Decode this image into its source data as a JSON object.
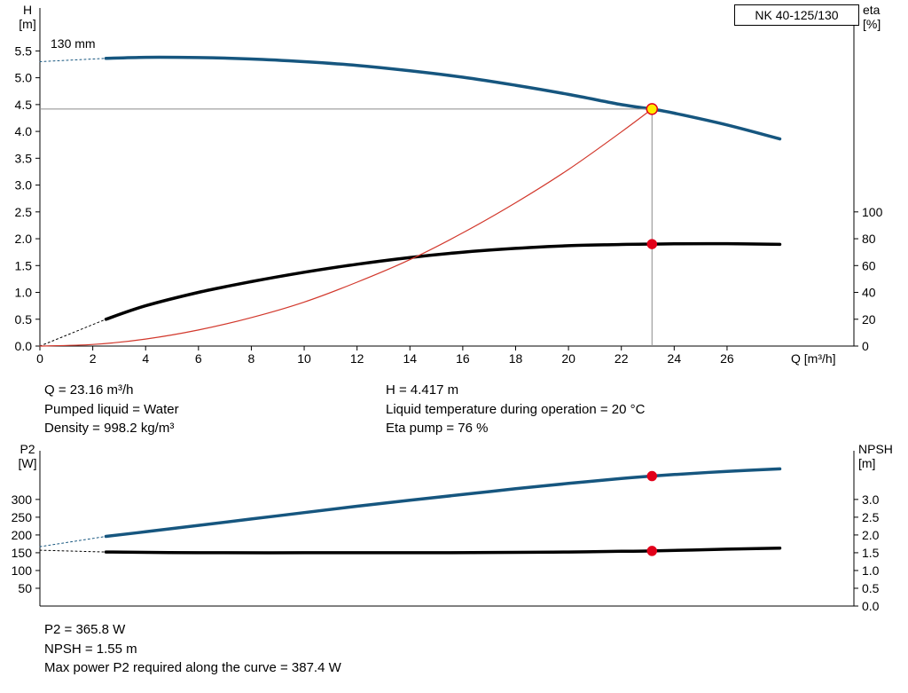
{
  "title_box": "NK 40-125/130",
  "info_top": {
    "col1": [
      "Q = 23.16 m³/h",
      "Pumped liquid = Water",
      "Density = 998.2 kg/m³"
    ],
    "col2": [
      "H = 4.417 m",
      "Liquid temperature during operation = 20 °C",
      "Eta pump = 76 %"
    ]
  },
  "info_bottom": [
    "P2 = 365.8 W",
    "NPSH = 1.55 m",
    "Max power P2 required along the curve = 387.4 W"
  ],
  "colors": {
    "blue": "#16567f",
    "black": "#000000",
    "red": "#d2382c",
    "gray": "#8a8a8a",
    "dot_red": "#e2001a",
    "dot_yellow": "#ffec00",
    "axis": "#000000"
  },
  "chart_data": [
    {
      "type": "line",
      "name": "qh-eta-chart",
      "title": "NK 40-125/130",
      "x_label": "Q [m³/h]",
      "y_left_label": [
        "H",
        "[m]"
      ],
      "y_right_label": [
        "eta",
        "[%]"
      ],
      "impeller_label": "130 mm",
      "grid": false,
      "x_range": [
        0,
        30.8
      ],
      "y_left_range": [
        0,
        6.3
      ],
      "y_right_range": [
        0,
        252
      ],
      "x_ticks": {
        "values": [
          0,
          2,
          4,
          6,
          8,
          10,
          12,
          14,
          16,
          18,
          20,
          22,
          24,
          26
        ],
        "labels": [
          "0",
          "2",
          "4",
          "6",
          "8",
          "10",
          "12",
          "14",
          "16",
          "18",
          "20",
          "22",
          "24",
          "26"
        ]
      },
      "y_left_ticks": {
        "values": [
          0,
          0.5,
          1,
          1.5,
          2,
          2.5,
          3,
          3.5,
          4,
          4.5,
          5,
          5.5
        ],
        "labels": [
          "0.0",
          "0.5",
          "1.0",
          "1.5",
          "2.0",
          "2.5",
          "3.0",
          "3.5",
          "4.0",
          "4.5",
          "5.0",
          "5.5"
        ]
      },
      "y_right_ticks": {
        "values": [
          0,
          20,
          40,
          60,
          80,
          100
        ],
        "labels": [
          "0",
          "20",
          "40",
          "60",
          "80",
          "100"
        ]
      },
      "series": [
        {
          "name": "head-curve-dotted",
          "axis": "left",
          "color": "blue",
          "width": 1,
          "dash": "2 3",
          "points": [
            [
              0,
              5.3
            ],
            [
              2.5,
              5.36
            ]
          ]
        },
        {
          "name": "head-curve",
          "axis": "left",
          "color": "blue",
          "width": 3.5,
          "dash": null,
          "points": [
            [
              2.5,
              5.36
            ],
            [
              4,
              5.38
            ],
            [
              6,
              5.375
            ],
            [
              8,
              5.35
            ],
            [
              10,
              5.3
            ],
            [
              12,
              5.23
            ],
            [
              14,
              5.13
            ],
            [
              16,
              5.01
            ],
            [
              18,
              4.86
            ],
            [
              20,
              4.69
            ],
            [
              22,
              4.5
            ],
            [
              23.16,
              4.417
            ],
            [
              24,
              4.34
            ],
            [
              26,
              4.12
            ],
            [
              28,
              3.86
            ]
          ]
        },
        {
          "name": "efficiency-curve-dotted",
          "axis": "right",
          "color": "black",
          "width": 1,
          "dash": "2 3",
          "points": [
            [
              0,
              0
            ],
            [
              2.5,
              20
            ]
          ]
        },
        {
          "name": "efficiency-curve",
          "axis": "right",
          "color": "black",
          "width": 3.5,
          "dash": null,
          "points": [
            [
              2.5,
              20
            ],
            [
              4,
              30
            ],
            [
              6,
              40
            ],
            [
              8,
              48
            ],
            [
              10,
              55
            ],
            [
              12,
              61
            ],
            [
              14,
              66
            ],
            [
              16,
              70
            ],
            [
              18,
              72.8
            ],
            [
              20,
              74.8
            ],
            [
              22,
              75.7
            ],
            [
              23.16,
              76
            ],
            [
              24,
              76.2
            ],
            [
              26,
              76.3
            ],
            [
              28,
              75.8
            ]
          ]
        },
        {
          "name": "system-curve",
          "axis": "left",
          "color": "red",
          "width": 1.2,
          "dash": null,
          "points": [
            [
              0,
              0
            ],
            [
              2,
              0.03
            ],
            [
              4,
              0.13
            ],
            [
              6,
              0.3
            ],
            [
              8,
              0.53
            ],
            [
              10,
              0.82
            ],
            [
              12,
              1.19
            ],
            [
              14,
              1.61
            ],
            [
              16,
              2.11
            ],
            [
              18,
              2.67
            ],
            [
              20,
              3.29
            ],
            [
              22,
              3.99
            ],
            [
              23.16,
              4.417
            ]
          ]
        }
      ],
      "ref_lines": [
        {
          "name": "duty-h-line",
          "type": "h",
          "y": 4.417,
          "x_from": 0,
          "x_to": 23.16
        },
        {
          "name": "duty-v-line",
          "type": "v",
          "x": 23.16,
          "y_from": 0,
          "y_to": 4.417
        }
      ],
      "markers": [
        {
          "name": "duty-point",
          "axis": "left",
          "x": 23.16,
          "y": 4.417,
          "r": 6,
          "fill": "dot_yellow",
          "stroke": "dot_red"
        },
        {
          "name": "efficiency-point",
          "axis": "right",
          "x": 23.16,
          "y": 76,
          "r": 5,
          "fill": "dot_red",
          "stroke": "dot_red"
        }
      ]
    },
    {
      "type": "line",
      "name": "p2-npsh-chart",
      "x_label": "",
      "y_left_label": [
        "P2",
        "[W]"
      ],
      "y_right_label": [
        "NPSH",
        "[m]"
      ],
      "grid": false,
      "x_range": [
        0,
        30.8
      ],
      "y_left_range": [
        0,
        437
      ],
      "y_right_range": [
        0,
        4.37
      ],
      "x_ticks": null,
      "y_left_ticks": {
        "values": [
          50,
          100,
          150,
          200,
          250,
          300
        ],
        "labels": [
          "50",
          "100",
          "150",
          "200",
          "250",
          "300"
        ]
      },
      "y_right_ticks": {
        "values": [
          0,
          0.5,
          1,
          1.5,
          2,
          2.5,
          3
        ],
        "labels": [
          "0.0",
          "0.5",
          "1.0",
          "1.5",
          "2.0",
          "2.5",
          "3.0"
        ]
      },
      "series": [
        {
          "name": "p2-curve-dotted",
          "axis": "left",
          "color": "blue",
          "width": 1,
          "dash": "2 3",
          "points": [
            [
              0,
              167
            ],
            [
              2.5,
              196
            ]
          ]
        },
        {
          "name": "p2-curve",
          "axis": "left",
          "color": "blue",
          "width": 3.5,
          "dash": null,
          "points": [
            [
              2.5,
              196
            ],
            [
              4,
              209
            ],
            [
              6,
              227
            ],
            [
              8,
              245
            ],
            [
              10,
              263
            ],
            [
              12,
              281
            ],
            [
              14,
              298
            ],
            [
              16,
              314
            ],
            [
              18,
              330
            ],
            [
              20,
              345
            ],
            [
              22,
              359
            ],
            [
              23.16,
              365.8
            ],
            [
              24,
              370
            ],
            [
              26,
              379
            ],
            [
              28,
              386
            ]
          ]
        },
        {
          "name": "npsh-curve-dotted",
          "axis": "right",
          "color": "black",
          "width": 1,
          "dash": "2 3",
          "points": [
            [
              0,
              1.57
            ],
            [
              2.5,
              1.52
            ]
          ]
        },
        {
          "name": "npsh-curve",
          "axis": "right",
          "color": "black",
          "width": 3.5,
          "dash": null,
          "points": [
            [
              2.5,
              1.52
            ],
            [
              6,
              1.5
            ],
            [
              10,
              1.5
            ],
            [
              14,
              1.5
            ],
            [
              18,
              1.51
            ],
            [
              20,
              1.52
            ],
            [
              22,
              1.54
            ],
            [
              23.16,
              1.55
            ],
            [
              26,
              1.6
            ],
            [
              28,
              1.63
            ]
          ]
        }
      ],
      "ref_lines": [],
      "markers": [
        {
          "name": "p2-point",
          "axis": "left",
          "x": 23.16,
          "y": 365.8,
          "r": 5,
          "fill": "dot_red",
          "stroke": "dot_red"
        },
        {
          "name": "npsh-point",
          "axis": "right",
          "x": 23.16,
          "y": 1.55,
          "r": 5,
          "fill": "dot_red",
          "stroke": "dot_red"
        }
      ]
    }
  ]
}
